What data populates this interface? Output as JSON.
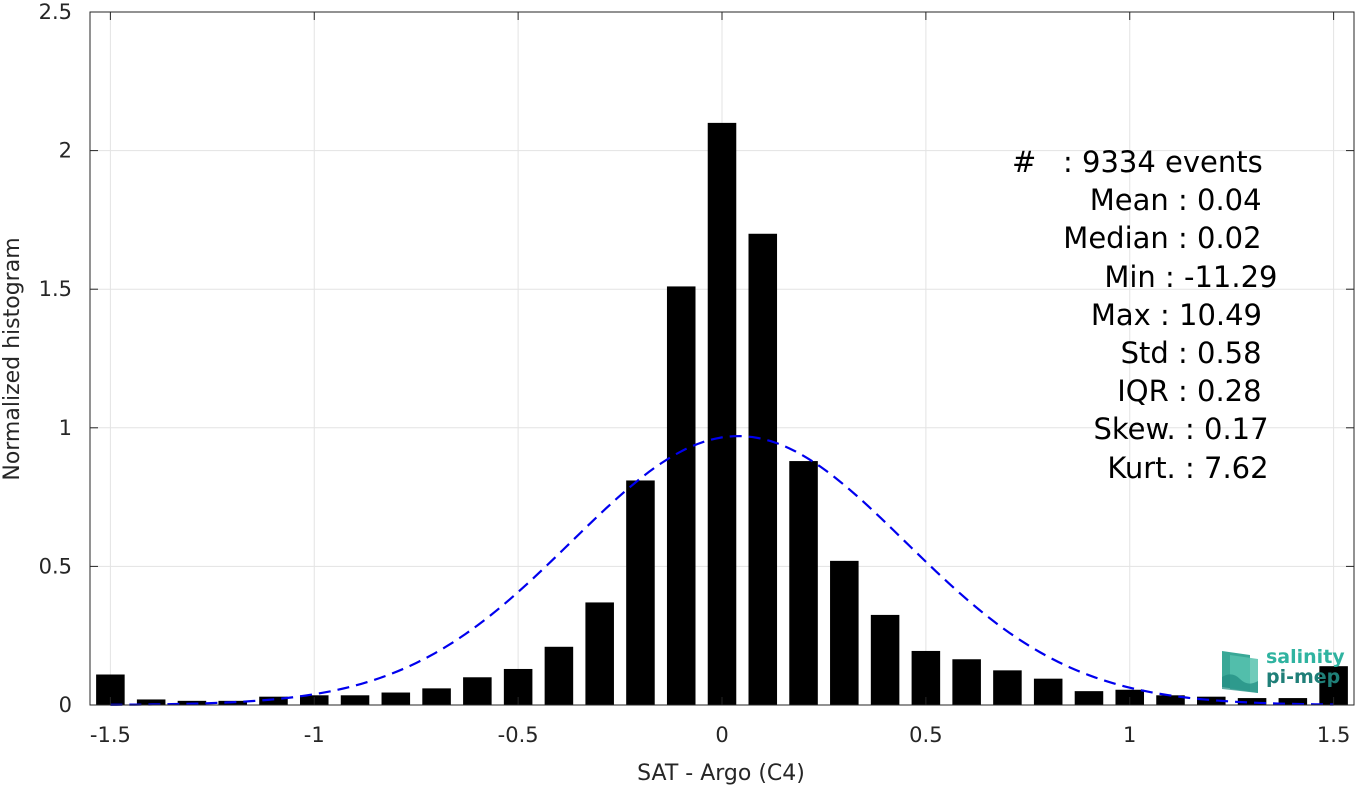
{
  "chart_data": {
    "type": "bar",
    "xlabel": "SAT - Argo (C4)",
    "ylabel": "Normalized histogram",
    "xlim": [
      -1.55,
      1.55
    ],
    "ylim": [
      0,
      2.5
    ],
    "xticks": [
      -1.5,
      -1,
      -0.5,
      0,
      0.5,
      1,
      1.5
    ],
    "xtick_labels": [
      "-1.5",
      "-1",
      "-0.5",
      "0",
      "0.5",
      "1",
      "1.5"
    ],
    "yticks": [
      0,
      0.5,
      1,
      1.5,
      2,
      2.5
    ],
    "ytick_labels": [
      "0",
      "0.5",
      "1",
      "1.5",
      "2",
      "2.5"
    ],
    "bar_width": 0.07,
    "grid": true,
    "bars": {
      "x": [
        -1.5,
        -1.4,
        -1.3,
        -1.2,
        -1.1,
        -1.0,
        -0.9,
        -0.8,
        -0.7,
        -0.6,
        -0.5,
        -0.4,
        -0.3,
        -0.2,
        -0.1,
        0.0,
        0.1,
        0.2,
        0.3,
        0.4,
        0.5,
        0.6,
        0.7,
        0.8,
        0.9,
        1.0,
        1.1,
        1.2,
        1.3,
        1.4,
        1.5
      ],
      "values": [
        0.11,
        0.02,
        0.015,
        0.015,
        0.03,
        0.035,
        0.035,
        0.045,
        0.06,
        0.1,
        0.13,
        0.21,
        0.37,
        0.81,
        1.51,
        2.1,
        1.7,
        0.88,
        0.52,
        0.325,
        0.195,
        0.165,
        0.125,
        0.095,
        0.05,
        0.055,
        0.035,
        0.03,
        0.025,
        0.025,
        0.14
      ],
      "color": "#000000"
    },
    "fit_curve": {
      "style": "dashed",
      "color": "#0000ee",
      "mean": 0.04,
      "std": 0.41,
      "peak": 0.97,
      "x_range": [
        -1.5,
        1.5
      ]
    },
    "stats": [
      {
        "label": "#  ",
        "value": ": 9334 events"
      },
      {
        "label": "Mean ",
        "value": ": 0.04"
      },
      {
        "label": "Median ",
        "value": ": 0.02"
      },
      {
        "label": "Min ",
        "value": ": -11.29"
      },
      {
        "label": "Max ",
        "value": ": 10.49"
      },
      {
        "label": "Std ",
        "value": ": 0.58"
      },
      {
        "label": "IQR ",
        "value": ": 0.28"
      },
      {
        "label": "Skew. ",
        "value": ": 0.17"
      },
      {
        "label": "Kurt. ",
        "value": ": 7.62"
      }
    ]
  },
  "logo": {
    "line1": "salinity",
    "line2": "pi-mep",
    "icon": "salinity-pimep-logo-icon"
  }
}
